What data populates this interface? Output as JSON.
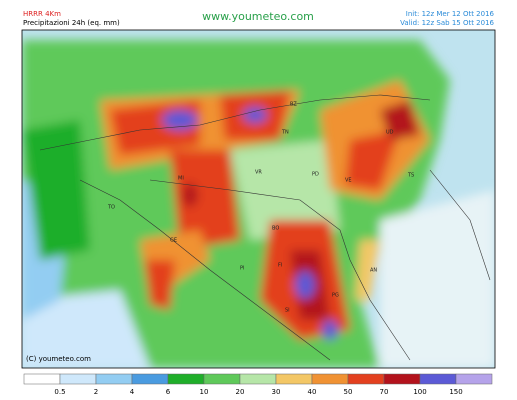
{
  "header": {
    "model": "HRRR 4Km",
    "field": "Precipitazioni 24h (eq. mm)",
    "site": "www.youmeteo.com",
    "init": "Init: 12z Mer 12 Ott 2016",
    "valid": "Valid: 12z Sab 15 Ott 2016"
  },
  "copyright": "(C) youmeteo.com",
  "legend": {
    "labels": [
      0.5,
      2,
      4,
      6,
      10,
      20,
      30,
      40,
      50,
      70,
      100,
      150
    ],
    "colors": [
      "#ffffff",
      "#cfe8fb",
      "#93cdf2",
      "#4a9be0",
      "#1fae2a",
      "#5fc95a",
      "#b6e6a8",
      "#f3c766",
      "#f09233",
      "#e3401f",
      "#b3121c",
      "#5c5ad6",
      "#b5a3ea"
    ]
  },
  "cities": [
    "BZ",
    "TN",
    "UD",
    "TS",
    "VR",
    "PD",
    "VE",
    "MI",
    "TO",
    "GE",
    "BO",
    "FI",
    "PI",
    "SI",
    "PG",
    "AN"
  ]
}
